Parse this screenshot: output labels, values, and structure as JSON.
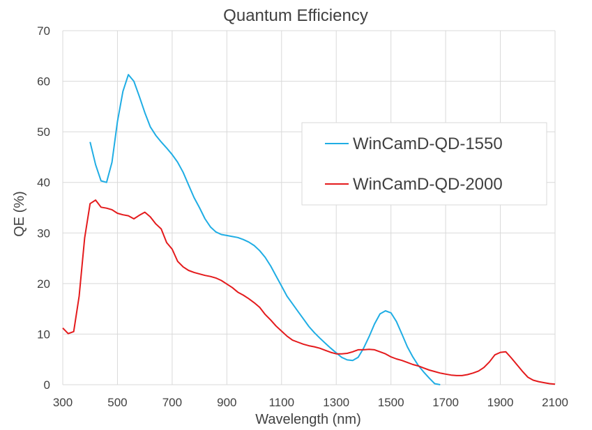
{
  "chart_data": {
    "type": "line",
    "title": "Quantum Efficiency",
    "xlabel": "Wavelength (nm)",
    "ylabel": "QE (%)",
    "xlim": [
      300,
      2100
    ],
    "ylim": [
      0,
      70
    ],
    "xticks": [
      300,
      500,
      700,
      900,
      1100,
      1300,
      1500,
      1700,
      1900,
      2100
    ],
    "yticks": [
      0,
      10,
      20,
      30,
      40,
      50,
      60,
      70
    ],
    "grid": true,
    "legend_position": "right",
    "series": [
      {
        "name": "WinCamD-QD-1550",
        "color": "#1FADE4",
        "points": [
          [
            400,
            48
          ],
          [
            420,
            43.5
          ],
          [
            440,
            40.3
          ],
          [
            460,
            40
          ],
          [
            480,
            44
          ],
          [
            500,
            52
          ],
          [
            520,
            58
          ],
          [
            540,
            61.3
          ],
          [
            560,
            60
          ],
          [
            580,
            57
          ],
          [
            600,
            53.8
          ],
          [
            620,
            51
          ],
          [
            640,
            49.3
          ],
          [
            660,
            48
          ],
          [
            680,
            46.8
          ],
          [
            700,
            45.5
          ],
          [
            720,
            44
          ],
          [
            740,
            42
          ],
          [
            760,
            39.5
          ],
          [
            780,
            37
          ],
          [
            800,
            35
          ],
          [
            820,
            32.8
          ],
          [
            840,
            31.2
          ],
          [
            860,
            30.2
          ],
          [
            880,
            29.7
          ],
          [
            900,
            29.5
          ],
          [
            920,
            29.3
          ],
          [
            940,
            29.1
          ],
          [
            960,
            28.7
          ],
          [
            980,
            28.2
          ],
          [
            1000,
            27.5
          ],
          [
            1020,
            26.5
          ],
          [
            1040,
            25.2
          ],
          [
            1060,
            23.5
          ],
          [
            1080,
            21.5
          ],
          [
            1100,
            19.5
          ],
          [
            1120,
            17.5
          ],
          [
            1140,
            16
          ],
          [
            1160,
            14.5
          ],
          [
            1180,
            13
          ],
          [
            1200,
            11.5
          ],
          [
            1220,
            10.3
          ],
          [
            1240,
            9.2
          ],
          [
            1260,
            8.2
          ],
          [
            1280,
            7.2
          ],
          [
            1300,
            6.3
          ],
          [
            1320,
            5.4
          ],
          [
            1340,
            4.9
          ],
          [
            1360,
            4.8
          ],
          [
            1380,
            5.4
          ],
          [
            1400,
            7.2
          ],
          [
            1420,
            9.5
          ],
          [
            1440,
            12
          ],
          [
            1460,
            14
          ],
          [
            1480,
            14.6
          ],
          [
            1500,
            14.2
          ],
          [
            1520,
            12.5
          ],
          [
            1540,
            10
          ],
          [
            1560,
            7.5
          ],
          [
            1580,
            5.5
          ],
          [
            1600,
            3.8
          ],
          [
            1620,
            2.5
          ],
          [
            1640,
            1.3
          ],
          [
            1660,
            0.2
          ],
          [
            1680,
            0
          ]
        ]
      },
      {
        "name": "WinCamD-QD-2000",
        "color": "#E41A1C",
        "points": [
          [
            300,
            11.2
          ],
          [
            320,
            10.1
          ],
          [
            340,
            10.5
          ],
          [
            360,
            17.5
          ],
          [
            380,
            29
          ],
          [
            400,
            35.8
          ],
          [
            420,
            36.5
          ],
          [
            440,
            35.1
          ],
          [
            460,
            34.9
          ],
          [
            480,
            34.6
          ],
          [
            500,
            33.9
          ],
          [
            520,
            33.6
          ],
          [
            540,
            33.4
          ],
          [
            560,
            32.8
          ],
          [
            580,
            33.5
          ],
          [
            600,
            34.1
          ],
          [
            620,
            33.2
          ],
          [
            640,
            31.8
          ],
          [
            660,
            30.8
          ],
          [
            680,
            28.1
          ],
          [
            700,
            26.8
          ],
          [
            720,
            24.4
          ],
          [
            740,
            23.3
          ],
          [
            760,
            22.6
          ],
          [
            780,
            22.2
          ],
          [
            800,
            21.9
          ],
          [
            820,
            21.6
          ],
          [
            840,
            21.4
          ],
          [
            860,
            21.1
          ],
          [
            880,
            20.6
          ],
          [
            900,
            19.9
          ],
          [
            920,
            19.2
          ],
          [
            940,
            18.3
          ],
          [
            960,
            17.7
          ],
          [
            980,
            17
          ],
          [
            1000,
            16.2
          ],
          [
            1020,
            15.3
          ],
          [
            1040,
            13.9
          ],
          [
            1060,
            12.8
          ],
          [
            1080,
            11.6
          ],
          [
            1100,
            10.6
          ],
          [
            1120,
            9.6
          ],
          [
            1140,
            8.8
          ],
          [
            1160,
            8.4
          ],
          [
            1180,
            8
          ],
          [
            1200,
            7.7
          ],
          [
            1220,
            7.5
          ],
          [
            1240,
            7.2
          ],
          [
            1260,
            6.8
          ],
          [
            1280,
            6.4
          ],
          [
            1300,
            6.1
          ],
          [
            1320,
            6.1
          ],
          [
            1340,
            6.2
          ],
          [
            1360,
            6.5
          ],
          [
            1380,
            6.9
          ],
          [
            1400,
            6.9
          ],
          [
            1420,
            7
          ],
          [
            1440,
            6.9
          ],
          [
            1460,
            6.5
          ],
          [
            1480,
            6.1
          ],
          [
            1500,
            5.5
          ],
          [
            1520,
            5.1
          ],
          [
            1540,
            4.8
          ],
          [
            1560,
            4.4
          ],
          [
            1580,
            4
          ],
          [
            1600,
            3.7
          ],
          [
            1620,
            3.3
          ],
          [
            1640,
            2.9
          ],
          [
            1660,
            2.6
          ],
          [
            1680,
            2.3
          ],
          [
            1700,
            2.1
          ],
          [
            1720,
            1.9
          ],
          [
            1740,
            1.8
          ],
          [
            1760,
            1.8
          ],
          [
            1780,
            2
          ],
          [
            1800,
            2.3
          ],
          [
            1820,
            2.7
          ],
          [
            1840,
            3.4
          ],
          [
            1860,
            4.5
          ],
          [
            1880,
            5.9
          ],
          [
            1900,
            6.4
          ],
          [
            1920,
            6.5
          ],
          [
            1940,
            5.3
          ],
          [
            1960,
            4
          ],
          [
            1980,
            2.7
          ],
          [
            2000,
            1.5
          ],
          [
            2020,
            0.9
          ],
          [
            2040,
            0.6
          ],
          [
            2060,
            0.4
          ],
          [
            2080,
            0.2
          ],
          [
            2100,
            0.1
          ]
        ]
      }
    ]
  }
}
